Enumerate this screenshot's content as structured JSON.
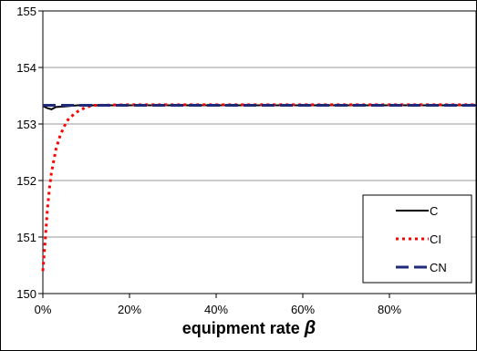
{
  "chart_data": {
    "type": "line",
    "xlabel": "equipment rate",
    "xlabel_symbol": "β",
    "ylabel": "",
    "title": "",
    "ylim": [
      150,
      155
    ],
    "xlim": [
      0,
      1
    ],
    "yticks": [
      150,
      151,
      152,
      153,
      154,
      155
    ],
    "xticks": [
      0,
      0.2,
      0.4,
      0.6,
      0.8
    ],
    "xtick_labels": [
      "0%",
      "20%",
      "40%",
      "60%",
      "80%"
    ],
    "grid": "horizontal",
    "legend_position": "bottom-right",
    "series": [
      {
        "name": "C",
        "color": "#000000",
        "style": "solid",
        "points": [
          [
            0,
            153.32
          ],
          [
            0.01,
            153.28
          ],
          [
            0.02,
            153.26
          ],
          [
            0.03,
            153.3
          ],
          [
            0.05,
            153.31
          ],
          [
            0.08,
            153.33
          ],
          [
            0.12,
            153.33
          ],
          [
            0.2,
            153.33
          ],
          [
            0.4,
            153.33
          ],
          [
            0.6,
            153.33
          ],
          [
            0.8,
            153.33
          ],
          [
            1.0,
            153.33
          ]
        ]
      },
      {
        "name": "CI",
        "color": "#ff0000",
        "style": "dotted",
        "points": [
          [
            0,
            150.4
          ],
          [
            0.005,
            150.9
          ],
          [
            0.01,
            151.45
          ],
          [
            0.015,
            151.85
          ],
          [
            0.02,
            152.15
          ],
          [
            0.03,
            152.55
          ],
          [
            0.04,
            152.8
          ],
          [
            0.05,
            152.97
          ],
          [
            0.06,
            153.1
          ],
          [
            0.08,
            153.22
          ],
          [
            0.1,
            153.3
          ],
          [
            0.12,
            153.33
          ],
          [
            0.2,
            153.34
          ],
          [
            0.4,
            153.34
          ],
          [
            0.6,
            153.34
          ],
          [
            0.8,
            153.34
          ],
          [
            1.0,
            153.34
          ]
        ]
      },
      {
        "name": "CN",
        "color": "#1f2a7a",
        "style": "dashed",
        "points": [
          [
            0,
            153.33
          ],
          [
            0.2,
            153.33
          ],
          [
            0.4,
            153.33
          ],
          [
            0.6,
            153.33
          ],
          [
            0.8,
            153.33
          ],
          [
            1.0,
            153.33
          ]
        ]
      }
    ]
  }
}
